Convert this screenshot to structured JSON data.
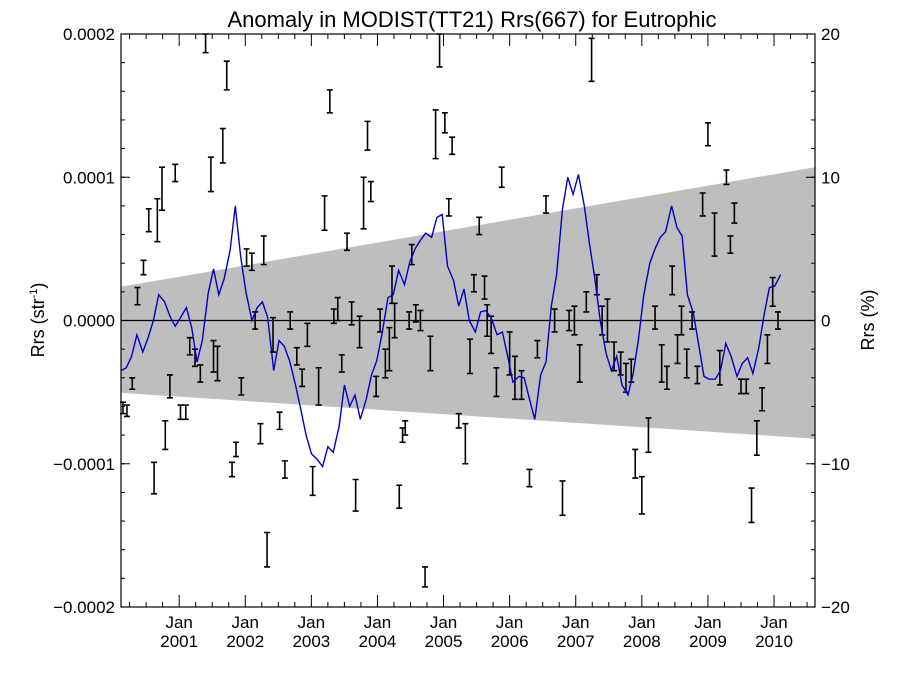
{
  "chart_data": {
    "type": "line",
    "title": "Anomaly in MODIST(TT21) Rrs(667) for Eutrophic",
    "ylabel": "Rrs (str",
    "ylabel_sup": "-1",
    "ylabel_close": ")",
    "y2label": "Rrs (%)",
    "xlim": [
      2000.12,
      2010.62
    ],
    "ylim": [
      -0.0002,
      0.0002
    ],
    "y2lim": [
      -20,
      20
    ],
    "yticks": [
      -0.0002,
      -0.0001,
      0.0,
      0.0001,
      0.0002
    ],
    "ytick_labels": [
      "−0.0002",
      "−0.0001",
      "0.0000",
      "0.0001",
      "0.0002"
    ],
    "y2ticks": [
      -20,
      -10,
      0,
      10,
      20
    ],
    "y2tick_labels": [
      "−20",
      "−10",
      "0",
      "10",
      "20"
    ],
    "xticks": [
      2001,
      2002,
      2003,
      2004,
      2005,
      2006,
      2007,
      2008,
      2009,
      2010
    ],
    "xtick_months": [
      "Jan",
      "Jan",
      "Jan",
      "Jan",
      "Jan",
      "Jan",
      "Jan",
      "Jan",
      "Jan",
      "Jan"
    ],
    "xtick_years": [
      "2001",
      "2002",
      "2003",
      "2004",
      "2005",
      "2006",
      "2007",
      "2008",
      "2009",
      "2010"
    ],
    "grid": false,
    "colors": {
      "line": "#0000cc",
      "band": "#bebebe",
      "errorbar": "#000000",
      "zero": "#000000"
    },
    "band": {
      "x": [
        2000.12,
        2010.62
      ],
      "upper": [
        2.35e-05,
        0.000107
      ],
      "lower": [
        -5.05e-05,
        -8.25e-05
      ]
    },
    "series": [
      {
        "values": [
          [
            2000.12,
            -3.5e-05
          ],
          [
            2000.2,
            -3.3e-05
          ],
          [
            2000.28,
            -2.5e-05
          ],
          [
            2000.36,
            -1e-05
          ],
          [
            2000.45,
            -2.2e-05
          ],
          [
            2000.53,
            -1.2e-05
          ],
          [
            2000.61,
            0.0
          ],
          [
            2000.69,
            1.8e-05
          ],
          [
            2000.78,
            1.3e-05
          ],
          [
            2000.86,
            3e-06
          ],
          [
            2000.94,
            -4e-06
          ],
          [
            2001.02,
            2e-06
          ],
          [
            2001.11,
            9e-06
          ],
          [
            2001.19,
            -5e-06
          ],
          [
            2001.27,
            -2.9e-05
          ],
          [
            2001.35,
            -1.4e-05
          ],
          [
            2001.44,
            1.9e-05
          ],
          [
            2001.52,
            3.6e-05
          ],
          [
            2001.6,
            1.8e-05
          ],
          [
            2001.68,
            2.9e-05
          ],
          [
            2001.77,
            4.9e-05
          ],
          [
            2001.85,
            8e-05
          ],
          [
            2001.93,
            4.5e-05
          ],
          [
            2002.01,
            2e-05
          ],
          [
            2002.1,
            0.0
          ],
          [
            2002.18,
            9e-06
          ],
          [
            2002.26,
            1.3e-05
          ],
          [
            2002.34,
            2e-06
          ],
          [
            2002.43,
            -3.5e-05
          ],
          [
            2002.51,
            -1.4e-05
          ],
          [
            2002.59,
            -1.8e-05
          ],
          [
            2002.67,
            -2.8e-05
          ],
          [
            2002.76,
            -4.5e-05
          ],
          [
            2002.84,
            -6.2e-05
          ],
          [
            2002.92,
            -8e-05
          ],
          [
            2003.0,
            -9.3e-05
          ],
          [
            2003.09,
            -9.7e-05
          ],
          [
            2003.17,
            -0.000102
          ],
          [
            2003.25,
            -8.8e-05
          ],
          [
            2003.33,
            -9.2e-05
          ],
          [
            2003.42,
            -7.4e-05
          ],
          [
            2003.5,
            -4.5e-05
          ],
          [
            2003.58,
            -6e-05
          ],
          [
            2003.66,
            -5.2e-05
          ],
          [
            2003.74,
            -6.9e-05
          ],
          [
            2003.83,
            -5.5e-05
          ],
          [
            2003.91,
            -3.8e-05
          ],
          [
            2003.99,
            -2.8e-05
          ],
          [
            2004.07,
            -9e-06
          ],
          [
            2004.16,
            1.6e-05
          ],
          [
            2004.24,
            1.8e-05
          ],
          [
            2004.32,
            3.5e-05
          ],
          [
            2004.41,
            2.5e-05
          ],
          [
            2004.49,
            4.1e-05
          ],
          [
            2004.57,
            5e-05
          ],
          [
            2004.65,
            5.6e-05
          ],
          [
            2004.73,
            6.1e-05
          ],
          [
            2004.82,
            5.8e-05
          ],
          [
            2004.9,
            7.2e-05
          ],
          [
            2004.98,
            7.4e-05
          ],
          [
            2005.06,
            3.8e-05
          ],
          [
            2005.15,
            2.8e-05
          ],
          [
            2005.23,
            1e-05
          ],
          [
            2005.31,
            2.2e-05
          ],
          [
            2005.39,
            0.0
          ],
          [
            2005.48,
            -8e-06
          ],
          [
            2005.56,
            6e-06
          ],
          [
            2005.64,
            7e-06
          ],
          [
            2005.72,
            2e-06
          ],
          [
            2005.81,
            -1e-05
          ],
          [
            2005.89,
            -8e-06
          ],
          [
            2005.97,
            -2.5e-05
          ],
          [
            2006.05,
            -4.3e-05
          ],
          [
            2006.14,
            -3.9e-05
          ],
          [
            2006.22,
            -4e-05
          ],
          [
            2006.3,
            -5.5e-05
          ],
          [
            2006.38,
            -6.9e-05
          ],
          [
            2006.47,
            -3.8e-05
          ],
          [
            2006.55,
            -2.9e-05
          ],
          [
            2006.63,
            1e-05
          ],
          [
            2006.71,
            3.2e-05
          ],
          [
            2006.8,
            7.8e-05
          ],
          [
            2006.88,
            0.0001
          ],
          [
            2006.96,
            8.8e-05
          ],
          [
            2007.04,
            0.000102
          ],
          [
            2007.13,
            8e-05
          ],
          [
            2007.21,
            5.3e-05
          ],
          [
            2007.29,
            2.9e-05
          ],
          [
            2007.37,
            0.0
          ],
          [
            2007.46,
            -2.3e-05
          ],
          [
            2007.54,
            -3.5e-05
          ],
          [
            2007.62,
            -2.5e-05
          ],
          [
            2007.7,
            -4.5e-05
          ],
          [
            2007.79,
            -5.2e-05
          ],
          [
            2007.87,
            -3.7e-05
          ],
          [
            2007.95,
            -1.3e-05
          ],
          [
            2008.03,
            1.8e-05
          ],
          [
            2008.12,
            4e-05
          ],
          [
            2008.2,
            5e-05
          ],
          [
            2008.28,
            5.8e-05
          ],
          [
            2008.36,
            6.2e-05
          ],
          [
            2008.45,
            8e-05
          ],
          [
            2008.53,
            6.5e-05
          ],
          [
            2008.61,
            5.9e-05
          ],
          [
            2008.69,
            1.8e-05
          ],
          [
            2008.78,
            5e-06
          ],
          [
            2008.86,
            -1.7e-05
          ],
          [
            2008.94,
            -3.9e-05
          ],
          [
            2009.02,
            -4.1e-05
          ],
          [
            2009.11,
            -4.1e-05
          ],
          [
            2009.19,
            -3.5e-05
          ],
          [
            2009.27,
            -1.6e-05
          ],
          [
            2009.35,
            -2.5e-05
          ],
          [
            2009.44,
            -3.9e-05
          ],
          [
            2009.52,
            -3e-05
          ],
          [
            2009.6,
            -2.6e-05
          ],
          [
            2009.68,
            -3.7e-05
          ],
          [
            2009.77,
            -1.9e-05
          ],
          [
            2009.85,
            4e-06
          ],
          [
            2009.93,
            2.3e-05
          ],
          [
            2010.01,
            2.4e-05
          ],
          [
            2010.1,
            3.2e-05
          ]
        ]
      }
    ],
    "errorbars": [
      [
        2000.15,
        -6.1e-05,
        4e-06
      ],
      [
        2000.21,
        -6.3e-05,
        4e-06
      ],
      [
        2000.29,
        -4.4e-05,
        4e-06
      ],
      [
        2000.37,
        1.7e-05,
        6e-06
      ],
      [
        2000.46,
        3.7e-05,
        5e-06
      ],
      [
        2000.54,
        7e-05,
        8e-06
      ],
      [
        2000.62,
        -0.00011,
        1.1e-05
      ],
      [
        2000.67,
        7e-05,
        1.5e-05
      ],
      [
        2000.74,
        9.2e-05,
        1.5e-05
      ],
      [
        2000.79,
        -8e-05,
        1e-05
      ],
      [
        2000.86,
        -4.6e-05,
        8e-06
      ],
      [
        2000.94,
        0.000103,
        6e-06
      ],
      [
        2001.02,
        -6.4e-05,
        5e-06
      ],
      [
        2001.1,
        -6.4e-05,
        5e-06
      ],
      [
        2001.16,
        -1.8e-05,
        6e-06
      ],
      [
        2001.24,
        -2.6e-05,
        6e-06
      ],
      [
        2001.32,
        -3.7e-05,
        6e-06
      ],
      [
        2001.4,
        0.000195,
        8e-06
      ],
      [
        2001.48,
        0.000102,
        1.2e-05
      ],
      [
        2001.52,
        -2.5e-05,
        1.1e-05
      ],
      [
        2001.58,
        -3e-05,
        1.2e-05
      ],
      [
        2001.66,
        0.000122,
        1.2e-05
      ],
      [
        2001.72,
        0.000171,
        1e-05
      ],
      [
        2001.8,
        -0.000104,
        5e-06
      ],
      [
        2001.86,
        -9e-05,
        5e-06
      ],
      [
        2001.94,
        -4.6e-05,
        6e-06
      ],
      [
        2002.02,
        4.4e-05,
        6e-06
      ],
      [
        2002.1,
        4.1e-05,
        6e-06
      ],
      [
        2002.15,
        0.0,
        6e-06
      ],
      [
        2002.23,
        -7.9e-05,
        7e-06
      ],
      [
        2002.28,
        4.9e-05,
        1e-05
      ],
      [
        2002.33,
        -0.00016,
        1.2e-05
      ],
      [
        2002.42,
        -1e-05,
        1.2e-05
      ],
      [
        2002.52,
        -7e-05,
        6e-06
      ],
      [
        2002.6,
        -0.000104,
        6e-06
      ],
      [
        2002.68,
        0.0,
        6e-06
      ],
      [
        2002.78,
        -2.5e-05,
        6e-06
      ],
      [
        2002.86,
        -4e-05,
        6e-06
      ],
      [
        2002.94,
        -1e-05,
        8e-06
      ],
      [
        2003.02,
        -0.000112,
        1e-05
      ],
      [
        2003.11,
        -4.6e-05,
        1.3e-05
      ],
      [
        2003.2,
        7.5e-05,
        1.2e-05
      ],
      [
        2003.28,
        0.000153,
        8e-06
      ],
      [
        2003.34,
        3e-06,
        5e-06
      ],
      [
        2003.4,
        8e-06,
        8e-06
      ],
      [
        2003.46,
        -3e-05,
        6e-06
      ],
      [
        2003.54,
        5.5e-05,
        6e-06
      ],
      [
        2003.61,
        5e-06,
        8e-06
      ],
      [
        2003.67,
        -0.000122,
        1.1e-05
      ],
      [
        2003.73,
        -8e-06,
        1.1e-05
      ],
      [
        2003.79,
        8.2e-05,
        1.8e-05
      ],
      [
        2003.85,
        0.000129,
        1e-05
      ],
      [
        2003.9,
        9e-05,
        7e-06
      ],
      [
        2003.98,
        -4.6e-05,
        7e-06
      ],
      [
        2004.04,
        0.0,
        8e-06
      ],
      [
        2004.12,
        -3e-05,
        1e-05
      ],
      [
        2004.18,
        -2e-05,
        1.5e-05
      ],
      [
        2004.22,
        2.5e-05,
        1.3e-05
      ],
      [
        2004.26,
        0.0,
        1.2e-05
      ],
      [
        2004.33,
        -0.000123,
        8e-06
      ],
      [
        2004.38,
        -8e-05,
        5e-06
      ],
      [
        2004.42,
        -7.5e-05,
        5e-06
      ],
      [
        2004.48,
        0.0,
        6e-06
      ],
      [
        2004.52,
        4.6e-05,
        7e-06
      ],
      [
        2004.58,
        5e-06,
        6e-06
      ],
      [
        2004.65,
        0.0,
        7e-06
      ],
      [
        2004.72,
        -0.000179,
        7e-06
      ],
      [
        2004.8,
        -2.3e-05,
        1.2e-05
      ],
      [
        2004.88,
        0.00013,
        1.7e-05
      ],
      [
        2004.94,
        0.000189,
        1.2e-05
      ],
      [
        2005.02,
        0.000138,
        7e-06
      ],
      [
        2005.08,
        7.9e-05,
        6e-06
      ],
      [
        2005.13,
        0.000122,
        6e-06
      ],
      [
        2005.23,
        -7e-05,
        5e-06
      ],
      [
        2005.33,
        -8.6e-05,
        1.4e-05
      ],
      [
        2005.4,
        -2.5e-05,
        1.2e-05
      ],
      [
        2005.46,
        2.6e-05,
        6e-06
      ],
      [
        2005.54,
        6.6e-05,
        6e-06
      ],
      [
        2005.62,
        2.3e-05,
        8e-06
      ],
      [
        2005.66,
        0.0,
        1.1e-05
      ],
      [
        2005.72,
        -1e-05,
        1.3e-05
      ],
      [
        2005.8,
        -4.3e-05,
        1e-05
      ],
      [
        2005.88,
        0.0001,
        7e-06
      ],
      [
        2006.0,
        -2.3e-05,
        1.5e-05
      ],
      [
        2006.08,
        -4e-05,
        1.5e-05
      ],
      [
        2006.18,
        -4.5e-05,
        1e-05
      ],
      [
        2006.3,
        -0.00011,
        6e-06
      ],
      [
        2006.42,
        -2e-05,
        6e-06
      ],
      [
        2006.55,
        8.1e-05,
        6e-06
      ],
      [
        2006.68,
        0.0,
        8e-06
      ],
      [
        2006.8,
        -0.000124,
        1.2e-05
      ],
      [
        2006.9,
        0.0,
        7e-06
      ],
      [
        2006.98,
        0.0,
        1e-05
      ],
      [
        2007.06,
        -3e-05,
        1.3e-05
      ],
      [
        2007.16,
        1.3e-05,
        7e-06
      ],
      [
        2007.24,
        0.000182,
        1.5e-05
      ],
      [
        2007.32,
        2.5e-05,
        7e-06
      ],
      [
        2007.4,
        0.0,
        1e-05
      ],
      [
        2007.48,
        0.0,
        1.5e-05
      ],
      [
        2007.58,
        -2.5e-05,
        1e-05
      ],
      [
        2007.68,
        -3e-05,
        8e-06
      ],
      [
        2007.76,
        -4e-05,
        1e-05
      ],
      [
        2007.84,
        -3.5e-05,
        8e-06
      ],
      [
        2007.9,
        -0.0001,
        1e-05
      ],
      [
        2008.0,
        -0.000122,
        1.3e-05
      ],
      [
        2008.1,
        -8e-05,
        1.2e-05
      ],
      [
        2008.2,
        2e-06,
        8e-06
      ],
      [
        2008.3,
        -3e-05,
        1.3e-05
      ],
      [
        2008.38,
        -4e-05,
        8e-06
      ],
      [
        2008.46,
        2.8e-05,
        1e-05
      ],
      [
        2008.54,
        -2e-05,
        1e-05
      ],
      [
        2008.6,
        0.0,
        1e-05
      ],
      [
        2008.68,
        -3e-05,
        1e-05
      ],
      [
        2008.76,
        0.0,
        6e-06
      ],
      [
        2008.84,
        -3.8e-05,
        6e-06
      ],
      [
        2008.92,
        8.1e-05,
        8e-06
      ],
      [
        2009.0,
        0.00013,
        8e-06
      ],
      [
        2009.1,
        6e-05,
        1.5e-05
      ],
      [
        2009.18,
        -3.3e-05,
        1.2e-05
      ],
      [
        2009.28,
        0.0001,
        5e-06
      ],
      [
        2009.34,
        5.3e-05,
        6e-06
      ],
      [
        2009.4,
        7.5e-05,
        7e-06
      ],
      [
        2009.5,
        -4.6e-05,
        5e-06
      ],
      [
        2009.58,
        -4.6e-05,
        5e-06
      ],
      [
        2009.66,
        -0.000129,
        1.2e-05
      ],
      [
        2009.74,
        -8.2e-05,
        1.2e-05
      ],
      [
        2009.82,
        -5.5e-05,
        8e-06
      ],
      [
        2009.9,
        -2e-05,
        1e-05
      ],
      [
        2009.98,
        2e-05,
        1e-05
      ],
      [
        2010.06,
        0.0,
        6e-06
      ]
    ]
  }
}
